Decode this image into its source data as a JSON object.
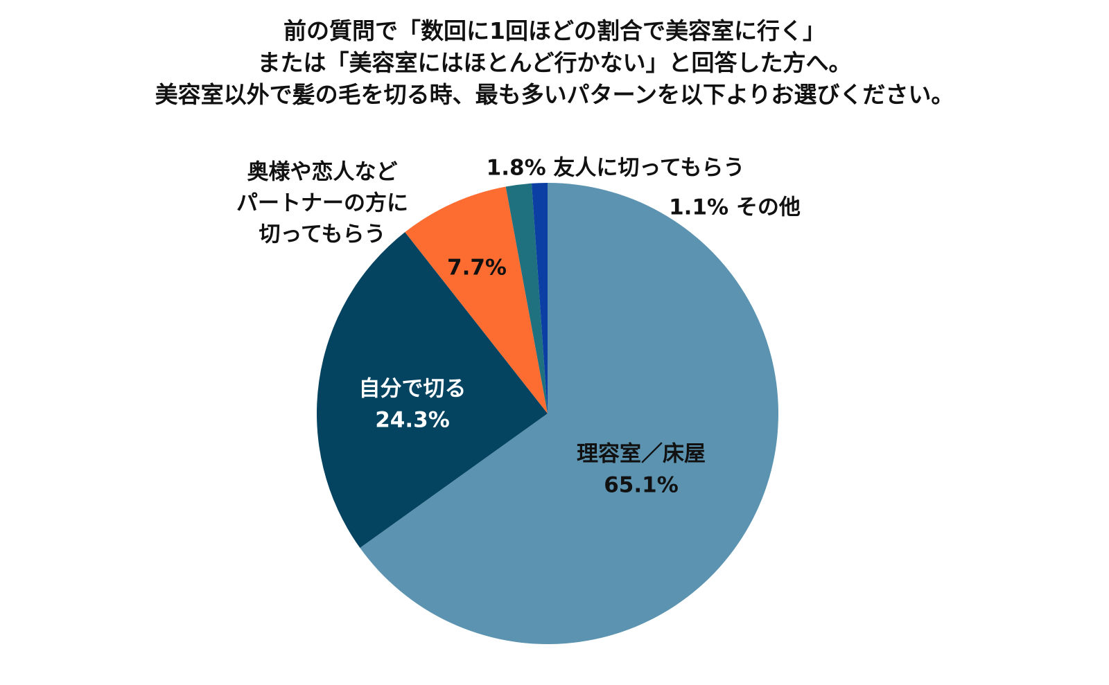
{
  "chart_data": {
    "type": "pie",
    "title": [
      "前の質問で「数回に1回ほどの割合で美容室に行く」",
      "または「美容室にはほとんど行かない」と回答した方へ。",
      "美容室以外で髪の毛を切る時、最も多いパターンを以下よりお選びください。"
    ],
    "start_angle_deg": 0,
    "direction": "clockwise",
    "legend": "none",
    "slices": [
      {
        "label": "理容室／床屋",
        "value": 65.1,
        "value_label": "65.1%",
        "color": "#5b93b0",
        "label_color": "#111111",
        "label_position": "inside"
      },
      {
        "label": "自分で切る",
        "value": 24.3,
        "value_label": "24.3%",
        "color": "#044461",
        "label_color": "#ffffff",
        "label_position": "inside"
      },
      {
        "label": "奥様や恋人など\nパートナーの方に\n切ってもらう",
        "value": 7.7,
        "value_label": "7.7%",
        "color": "#fd6d31",
        "label_color": "#111111",
        "label_position": "outside-split"
      },
      {
        "label": "友人に切ってもらう",
        "value": 1.8,
        "value_label": "1.8%",
        "color": "#1f717f",
        "label_color": "#111111",
        "label_position": "outside"
      },
      {
        "label": "その他",
        "value": 1.1,
        "value_label": "1.1%",
        "color": "#0b3fa3",
        "label_color": "#111111",
        "label_position": "outside"
      }
    ]
  }
}
